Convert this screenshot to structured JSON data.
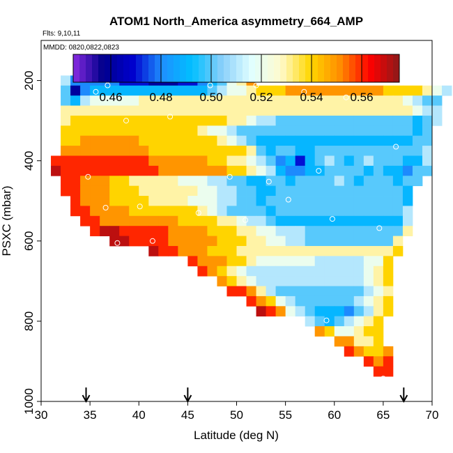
{
  "chart_data": {
    "type": "heatmap",
    "title": "ATOM1 North_America asymmetry_664_AMP",
    "flights_label": "Flts: 9,10,11",
    "dates_label": "MMDD: 0820,0822,0823",
    "xlabel": "Latitude (deg N)",
    "ylabel": "PSXC (mbar)",
    "xlim": [
      30,
      70
    ],
    "ylim": [
      1000,
      100
    ],
    "x_ticks": [
      30,
      35,
      40,
      45,
      50,
      55,
      60,
      65,
      70
    ],
    "y_ticks": [
      200,
      400,
      600,
      800,
      1000
    ],
    "colorbar": {
      "range": [
        0.445,
        0.575
      ],
      "ticks": [
        "0.46",
        "0.48",
        "0.50",
        "0.52",
        "0.54",
        "0.56"
      ],
      "tick_values": [
        0.46,
        0.48,
        0.5,
        0.52,
        0.54,
        0.56
      ],
      "colors": [
        "#8a2be2",
        "#00008b",
        "#0000cd",
        "#1e90ff",
        "#00bfff",
        "#87cefa",
        "#e0ffff",
        "#fffacd",
        "#ffd700",
        "#ff8c00",
        "#ff0000",
        "#8b1a1a"
      ]
    },
    "cell_size": {
      "dlat": 1,
      "dp": 25
    },
    "rows": [
      {
        "p": 200,
        "lat_start": 32,
        "values": [
          0.51,
          0.48,
          0.48,
          0.48,
          0.48,
          0.48,
          0.47,
          0.47,
          0.47,
          0.46,
          0.46,
          0.46,
          0.47,
          0.47,
          0.48,
          0.49,
          0.5,
          0.52,
          0.53,
          0.55
        ]
      },
      {
        "p": 225,
        "lat_start": 32,
        "values": [
          0.5,
          0.46,
          0.48,
          0.49,
          0.49,
          0.49,
          0.49,
          0.49,
          0.49,
          0.49,
          0.49,
          0.49,
          0.49,
          0.49,
          0.49,
          0.5,
          0.51,
          0.52,
          0.52,
          0.53,
          0.54,
          0.54,
          0.54,
          0.55,
          0.55,
          0.55,
          0.55,
          0.55,
          0.55,
          0.55,
          0.55,
          0.55,
          0.55,
          0.54,
          0.54,
          0.54,
          0.54,
          0.53,
          0.52,
          0.51
        ]
      },
      {
        "p": 250,
        "lat_start": 32,
        "values": [
          0.5,
          0.49,
          0.51,
          0.52,
          0.52,
          0.52,
          0.52,
          0.52,
          0.53,
          0.53,
          0.53,
          0.53,
          0.53,
          0.53,
          0.53,
          0.53,
          0.53,
          0.53,
          0.53,
          0.53,
          0.53,
          0.53,
          0.53,
          0.53,
          0.53,
          0.53,
          0.53,
          0.53,
          0.53,
          0.53,
          0.53,
          0.53,
          0.53,
          0.53,
          0.53,
          0.52,
          0.51,
          0.5,
          0.5
        ]
      },
      {
        "p": 275,
        "lat_start": 32,
        "values": [
          0.53,
          0.53,
          0.53,
          0.53,
          0.53,
          0.53,
          0.53,
          0.53,
          0.53,
          0.53,
          0.53,
          0.53,
          0.53,
          0.53,
          0.53,
          0.53,
          0.53,
          0.53,
          0.53,
          0.53,
          0.53,
          0.53,
          0.53,
          0.53,
          0.53,
          0.53,
          0.53,
          0.53,
          0.53,
          0.53,
          0.53,
          0.53,
          0.53,
          0.53,
          0.53,
          0.53,
          0.52,
          0.51,
          0.51
        ]
      },
      {
        "p": 300,
        "lat_start": 32,
        "values": [
          0.53,
          0.54,
          0.54,
          0.54,
          0.54,
          0.54,
          0.54,
          0.54,
          0.54,
          0.54,
          0.54,
          0.54,
          0.54,
          0.54,
          0.54,
          0.54,
          0.54,
          0.53,
          0.53,
          0.52,
          0.51,
          0.51,
          0.5,
          0.5,
          0.5,
          0.5,
          0.5,
          0.5,
          0.5,
          0.5,
          0.5,
          0.5,
          0.5,
          0.5,
          0.5,
          0.5,
          0.49,
          0.5,
          0.51
        ]
      },
      {
        "p": 325,
        "lat_start": 32,
        "values": [
          0.54,
          0.54,
          0.54,
          0.54,
          0.54,
          0.54,
          0.54,
          0.54,
          0.54,
          0.54,
          0.54,
          0.54,
          0.54,
          0.54,
          0.53,
          0.52,
          0.52,
          0.51,
          0.5,
          0.5,
          0.5,
          0.5,
          0.5,
          0.5,
          0.5,
          0.5,
          0.5,
          0.5,
          0.5,
          0.5,
          0.5,
          0.5,
          0.5,
          0.5,
          0.5,
          0.5,
          0.49,
          0.5
        ]
      },
      {
        "p": 350,
        "lat_start": 32,
        "values": [
          0.54,
          0.54,
          0.55,
          0.55,
          0.55,
          0.55,
          0.55,
          0.55,
          0.54,
          0.54,
          0.54,
          0.54,
          0.54,
          0.54,
          0.54,
          0.54,
          0.53,
          0.52,
          0.51,
          0.5,
          0.49,
          0.49,
          0.49,
          0.49,
          0.49,
          0.49,
          0.49,
          0.49,
          0.49,
          0.49,
          0.49,
          0.49,
          0.49,
          0.49,
          0.49,
          0.49,
          0.5,
          0.5
        ]
      },
      {
        "p": 375,
        "lat_start": 32,
        "values": [
          0.55,
          0.55,
          0.55,
          0.55,
          0.55,
          0.55,
          0.55,
          0.55,
          0.55,
          0.54,
          0.54,
          0.54,
          0.54,
          0.54,
          0.54,
          0.54,
          0.54,
          0.54,
          0.54,
          0.53,
          0.5,
          0.49,
          0.5,
          0.5,
          0.49,
          0.49,
          0.5,
          0.5,
          0.5,
          0.5,
          0.5,
          0.5,
          0.5,
          0.5,
          0.5,
          0.5,
          0.5,
          0.51
        ]
      },
      {
        "p": 400,
        "lat_start": 31,
        "values": [
          0.56,
          0.56,
          0.56,
          0.56,
          0.56,
          0.56,
          0.56,
          0.56,
          0.56,
          0.56,
          0.55,
          0.55,
          0.55,
          0.55,
          0.55,
          0.55,
          0.54,
          0.54,
          0.53,
          0.53,
          0.52,
          0.51,
          0.5,
          0.48,
          0.49,
          0.47,
          0.49,
          0.5,
          0.51,
          0.5,
          0.49,
          0.5,
          0.51,
          0.5,
          0.5,
          0.5,
          0.49,
          0.49,
          0.51
        ]
      },
      {
        "p": 425,
        "lat_start": 31,
        "values": [
          0.57,
          0.56,
          0.56,
          0.56,
          0.56,
          0.56,
          0.56,
          0.56,
          0.56,
          0.56,
          0.56,
          0.55,
          0.55,
          0.55,
          0.55,
          0.55,
          0.55,
          0.55,
          0.54,
          0.54,
          0.53,
          0.52,
          0.51,
          0.49,
          0.48,
          0.48,
          0.49,
          0.49,
          0.5,
          0.5,
          0.5,
          0.5,
          0.49,
          0.5,
          0.49,
          0.49,
          0.48,
          0.5,
          0.5
        ]
      },
      {
        "p": 450,
        "lat_start": 32,
        "values": [
          0.56,
          0.56,
          0.55,
          0.55,
          0.55,
          0.54,
          0.54,
          0.53,
          0.53,
          0.53,
          0.53,
          0.53,
          0.52,
          0.52,
          0.52,
          0.51,
          0.51,
          0.5,
          0.5,
          0.49,
          0.49,
          0.5,
          0.5,
          0.49,
          0.5,
          0.5,
          0.5,
          0.5,
          0.51,
          0.5,
          0.49,
          0.5,
          0.5,
          0.5,
          0.49,
          0.5,
          0.5
        ]
      },
      {
        "p": 475,
        "lat_start": 32,
        "values": [
          0.56,
          0.56,
          0.55,
          0.55,
          0.55,
          0.54,
          0.54,
          0.54,
          0.53,
          0.53,
          0.53,
          0.53,
          0.53,
          0.53,
          0.52,
          0.52,
          0.51,
          0.51,
          0.5,
          0.5,
          0.49,
          0.49,
          0.5,
          0.5,
          0.5,
          0.5,
          0.5,
          0.5,
          0.5,
          0.5,
          0.5,
          0.5,
          0.5,
          0.5,
          0.5,
          0.49
        ]
      },
      {
        "p": 500,
        "lat_start": 33,
        "values": [
          0.56,
          0.55,
          0.55,
          0.55,
          0.54,
          0.54,
          0.54,
          0.54,
          0.53,
          0.53,
          0.53,
          0.53,
          0.52,
          0.52,
          0.52,
          0.51,
          0.51,
          0.5,
          0.5,
          0.49,
          0.5,
          0.5,
          0.5,
          0.5,
          0.5,
          0.5,
          0.5,
          0.5,
          0.5,
          0.5,
          0.5,
          0.5,
          0.5,
          0.5,
          0.49
        ]
      },
      {
        "p": 525,
        "lat_start": 33,
        "values": [
          0.56,
          0.56,
          0.55,
          0.55,
          0.55,
          0.55,
          0.54,
          0.54,
          0.54,
          0.54,
          0.54,
          0.54,
          0.54,
          0.53,
          0.52,
          0.51,
          0.5,
          0.5,
          0.5,
          0.5,
          0.49,
          0.5,
          0.5,
          0.5,
          0.5,
          0.5,
          0.5,
          0.5,
          0.5,
          0.5,
          0.5,
          0.5,
          0.5,
          0.5,
          0.51
        ]
      },
      {
        "p": 550,
        "lat_start": 34,
        "values": [
          0.56,
          0.56,
          0.55,
          0.55,
          0.55,
          0.55,
          0.55,
          0.55,
          0.55,
          0.55,
          0.54,
          0.54,
          0.54,
          0.54,
          0.53,
          0.53,
          0.52,
          0.51,
          0.51,
          0.5,
          0.49,
          0.49,
          0.49,
          0.49,
          0.49,
          0.49,
          0.49,
          0.49,
          0.49,
          0.49,
          0.49,
          0.49,
          0.49,
          0.51
        ]
      },
      {
        "p": 575,
        "lat_start": 35,
        "values": [
          0.56,
          0.57,
          0.57,
          0.56,
          0.56,
          0.56,
          0.56,
          0.56,
          0.55,
          0.55,
          0.55,
          0.55,
          0.54,
          0.54,
          0.54,
          0.53,
          0.53,
          0.52,
          0.52,
          0.51,
          0.51,
          0.51,
          0.5,
          0.5,
          0.5,
          0.5,
          0.5,
          0.5,
          0.5,
          0.5,
          0.5,
          0.5,
          0.53
        ]
      },
      {
        "p": 600,
        "lat_start": 37,
        "values": [
          0.57,
          0.57,
          0.56,
          0.56,
          0.56,
          0.56,
          0.55,
          0.55,
          0.55,
          0.55,
          0.55,
          0.54,
          0.54,
          0.54,
          0.53,
          0.53,
          0.52,
          0.52,
          0.51,
          0.51,
          0.5,
          0.5,
          0.5,
          0.5,
          0.5,
          0.5,
          0.5,
          0.5,
          0.5,
          0.53
        ]
      },
      {
        "p": 625,
        "lat_start": 41,
        "values": [
          0.57,
          0.56,
          0.56,
          0.55,
          0.55,
          0.55,
          0.54,
          0.54,
          0.54,
          0.53,
          0.53,
          0.53,
          0.53,
          0.53,
          0.53,
          0.53,
          0.53,
          0.53,
          0.53,
          0.53,
          0.53,
          0.53,
          0.53,
          0.53,
          0.53,
          0.54
        ]
      },
      {
        "p": 650,
        "lat_start": 45,
        "values": [
          0.56,
          0.55,
          0.55,
          0.55,
          0.54,
          0.54,
          0.53,
          0.52,
          0.52,
          0.52,
          0.52,
          0.52,
          0.52,
          0.51,
          0.51,
          0.51,
          0.51,
          0.51,
          0.52,
          0.52,
          0.54
        ]
      },
      {
        "p": 675,
        "lat_start": 46,
        "values": [
          0.56,
          0.55,
          0.54,
          0.53,
          0.52,
          0.51,
          0.51,
          0.51,
          0.51,
          0.51,
          0.51,
          0.51,
          0.51,
          0.51,
          0.51,
          0.51,
          0.51,
          0.52,
          0.53,
          0.54
        ]
      },
      {
        "p": 700,
        "lat_start": 48,
        "values": [
          0.55,
          0.54,
          0.53,
          0.52,
          0.51,
          0.51,
          0.51,
          0.51,
          0.51,
          0.51,
          0.51,
          0.51,
          0.51,
          0.51,
          0.51,
          0.52,
          0.53,
          0.54
        ]
      },
      {
        "p": 725,
        "lat_start": 49,
        "values": [
          0.56,
          0.56,
          0.55,
          0.53,
          0.51,
          0.5,
          0.5,
          0.5,
          0.5,
          0.5,
          0.5,
          0.5,
          0.5,
          0.5,
          0.51,
          0.52,
          0.53
        ]
      },
      {
        "p": 750,
        "lat_start": 51,
        "values": [
          0.56,
          0.55,
          0.54,
          0.52,
          0.51,
          0.5,
          0.5,
          0.5,
          0.5,
          0.5,
          0.5,
          0.51,
          0.52,
          0.53,
          0.54
        ]
      },
      {
        "p": 775,
        "lat_start": 52,
        "values": [
          0.57,
          0.56,
          0.55,
          0.52,
          0.51,
          0.5,
          0.49,
          0.49,
          0.49,
          0.48,
          0.5,
          0.51,
          0.53,
          0.54
        ]
      },
      {
        "p": 800,
        "lat_start": 57,
        "values": [
          0.51,
          0.5,
          0.49,
          0.5,
          0.51,
          0.52,
          0.53,
          0.54
        ]
      },
      {
        "p": 825,
        "lat_start": 58,
        "values": [
          0.55,
          0.54,
          0.52,
          0.52,
          0.53,
          0.54,
          0.54
        ]
      },
      {
        "p": 850,
        "lat_start": 60,
        "values": [
          0.55,
          0.55,
          0.53,
          0.53,
          0.54
        ]
      },
      {
        "p": 875,
        "lat_start": 61,
        "values": [
          0.56,
          0.55,
          0.54,
          0.54,
          0.55
        ]
      },
      {
        "p": 900,
        "lat_start": 63,
        "values": [
          0.56,
          0.55,
          0.56
        ]
      },
      {
        "p": 925,
        "lat_start": 64,
        "values": [
          0.56,
          0.56
        ]
      }
    ],
    "observations": [
      {
        "lat": 35.7,
        "p": 193
      },
      {
        "lat": 36.3,
        "p": 193
      },
      {
        "lat": 36.8,
        "p": 200
      },
      {
        "lat": 36.8,
        "p": 212
      },
      {
        "lat": 35.6,
        "p": 228
      },
      {
        "lat": 47.3,
        "p": 212
      },
      {
        "lat": 52.0,
        "p": 212
      },
      {
        "lat": 56.9,
        "p": 228
      },
      {
        "lat": 61.2,
        "p": 242
      },
      {
        "lat": 38.7,
        "p": 300
      },
      {
        "lat": 43.2,
        "p": 290
      },
      {
        "lat": 66.3,
        "p": 365
      },
      {
        "lat": 58.4,
        "p": 425
      },
      {
        "lat": 34.8,
        "p": 440
      },
      {
        "lat": 49.3,
        "p": 440
      },
      {
        "lat": 53.3,
        "p": 452
      },
      {
        "lat": 55.3,
        "p": 497
      },
      {
        "lat": 36.6,
        "p": 517
      },
      {
        "lat": 40.1,
        "p": 514
      },
      {
        "lat": 46.1,
        "p": 530
      },
      {
        "lat": 50.9,
        "p": 548
      },
      {
        "lat": 59.8,
        "p": 545
      },
      {
        "lat": 64.6,
        "p": 568
      },
      {
        "lat": 37.8,
        "p": 605
      },
      {
        "lat": 41.4,
        "p": 600
      },
      {
        "lat": 59.2,
        "p": 798
      },
      {
        "lat": 65.0,
        "p": 943
      }
    ],
    "arrows_lat": [
      34.6,
      45.0,
      67.1
    ]
  }
}
